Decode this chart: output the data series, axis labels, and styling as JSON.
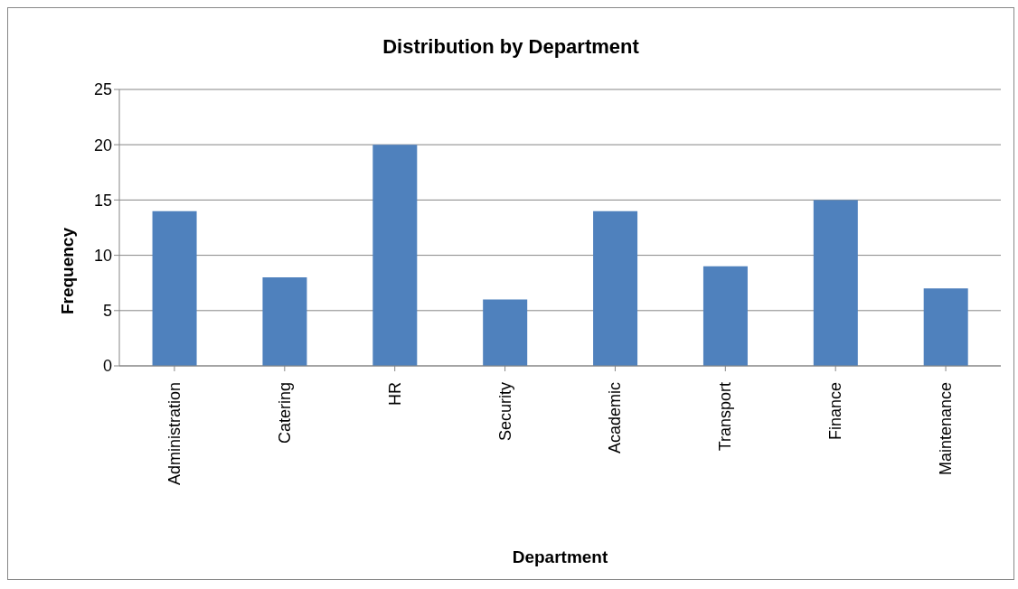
{
  "chart_data": {
    "type": "bar",
    "title": "Distribution by Department",
    "xlabel": "Department",
    "ylabel": "Frequency",
    "categories": [
      "Administration",
      "Catering",
      "HR",
      "Security",
      "Academic",
      "Transport",
      "Finance",
      "Maintenance"
    ],
    "values": [
      14,
      8,
      20,
      6,
      14,
      9,
      15,
      7
    ],
    "color": "#4f81bd",
    "ylim": [
      0,
      25
    ],
    "yticks": [
      0,
      5,
      10,
      15,
      20,
      25
    ],
    "grid": "y",
    "legend": false
  }
}
